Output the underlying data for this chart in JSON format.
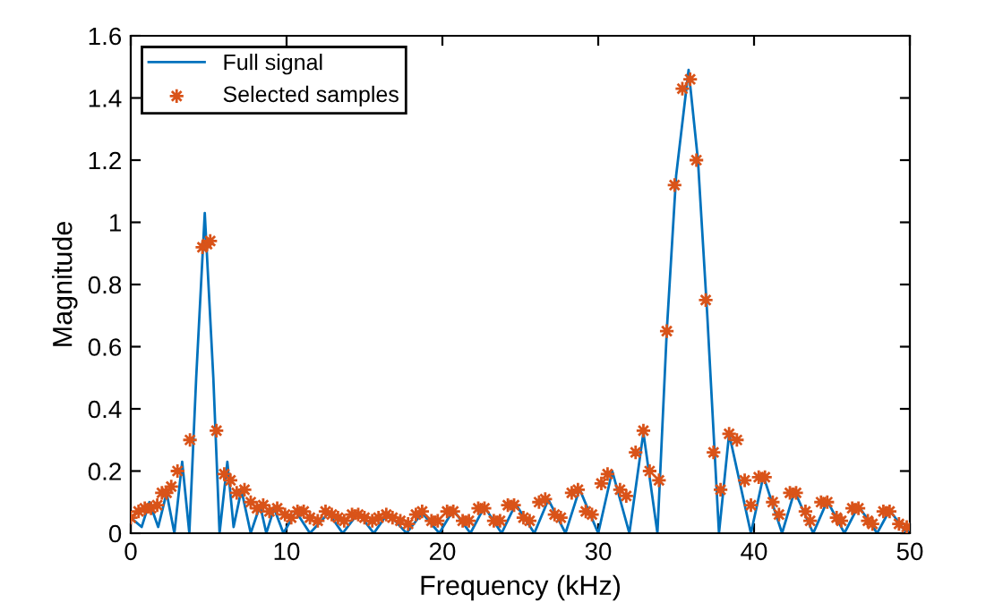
{
  "chart_data": {
    "type": "line",
    "xlabel": "Frequency (kHz)",
    "ylabel": "Magnitude",
    "xlim": [
      0,
      50
    ],
    "xticks": [
      0,
      10,
      20,
      30,
      40,
      50
    ],
    "ylim": [
      0,
      1.6
    ],
    "yticks": [
      0,
      0.2,
      0.4,
      0.6,
      0.8,
      1,
      1.2,
      1.4,
      1.6
    ],
    "grid": false,
    "legend": "top left",
    "series": [
      {
        "name": "Full signal",
        "marker": "none",
        "color": "#0072bd",
        "x": [
          0,
          0.7,
          1.2,
          1.76,
          2.3,
          2.8,
          3.3,
          3.76,
          4.2,
          4.75,
          5.3,
          5.7,
          6.2,
          6.6,
          7.1,
          7.7,
          8.3,
          8.7,
          9.2,
          9.8,
          10.6,
          11.5,
          12.7,
          13.6,
          14.6,
          15.6,
          16.5,
          17.7,
          18.7,
          19.8,
          20.7,
          21.8,
          22.7,
          23.8,
          24.7,
          25.9,
          26.8,
          27.9,
          28.8,
          30.0,
          30.9,
          32.0,
          32.9,
          33.8,
          34.4,
          35.0,
          35.8,
          36.4,
          37.0,
          37.75,
          38.4,
          39.8,
          40.6,
          41.8,
          42.6,
          43.8,
          44.7,
          45.8,
          46.7,
          47.9,
          48.7,
          49.8,
          50
        ],
        "values": [
          0.05,
          0.02,
          0.1,
          0.02,
          0.13,
          0.0,
          0.23,
          0.0,
          0.5,
          1.03,
          0.5,
          0.0,
          0.23,
          0.02,
          0.14,
          0.0,
          0.09,
          0.0,
          0.08,
          0.0,
          0.07,
          0.0,
          0.065,
          0.0,
          0.065,
          0.0,
          0.065,
          0.0,
          0.065,
          0.0,
          0.075,
          0.0,
          0.085,
          0.0,
          0.094,
          0.0,
          0.108,
          0.0,
          0.142,
          0.0,
          0.2,
          0.0,
          0.324,
          0.0,
          0.65,
          1.15,
          1.49,
          1.2,
          0.7,
          0.0,
          0.32,
          0.0,
          0.184,
          0.0,
          0.136,
          0.0,
          0.104,
          0.0,
          0.088,
          0.0,
          0.074,
          0.0,
          0.02
        ]
      },
      {
        "name": "Selected samples",
        "type": "scatter",
        "marker": "cross",
        "color": "#d95319",
        "x": [
          0,
          0.5,
          0.9,
          1.3,
          1.7,
          2.0,
          2.3,
          2.6,
          3.0,
          3.8,
          4.6,
          4.9,
          5.1,
          5.5,
          6.0,
          6.4,
          6.8,
          7.3,
          7.7,
          8.1,
          8.5,
          8.9,
          9.4,
          9.9,
          10.3,
          10.7,
          11.1,
          11.5,
          12.0,
          12.5,
          12.9,
          13.3,
          13.7,
          14.2,
          14.6,
          15.0,
          15.5,
          15.9,
          16.4,
          16.8,
          17.3,
          17.8,
          18.3,
          18.7,
          19.3,
          19.7,
          20.3,
          20.7,
          21.3,
          21.7,
          22.3,
          22.7,
          23.3,
          23.7,
          24.2,
          24.6,
          25.2,
          25.6,
          26.2,
          26.6,
          27.2,
          27.6,
          28.3,
          28.7,
          29.2,
          29.6,
          30.2,
          30.6,
          31.4,
          31.8,
          32.4,
          32.9,
          33.3,
          33.9,
          34.4,
          34.9,
          35.4,
          35.9,
          36.3,
          36.9,
          37.4,
          37.85,
          38.4,
          38.9,
          39.4,
          39.8,
          40.3,
          40.7,
          41.2,
          41.6,
          42.3,
          42.7,
          43.3,
          43.6,
          44.3,
          44.7,
          45.3,
          45.6,
          46.3,
          46.7,
          47.3,
          47.6,
          48.3,
          48.7,
          49.3,
          49.8
        ],
        "values": [
          0.05,
          0.07,
          0.08,
          0.08,
          0.09,
          0.13,
          0.13,
          0.15,
          0.2,
          0.3,
          0.92,
          0.93,
          0.94,
          0.33,
          0.19,
          0.17,
          0.13,
          0.14,
          0.1,
          0.08,
          0.09,
          0.07,
          0.08,
          0.06,
          0.05,
          0.07,
          0.07,
          0.05,
          0.04,
          0.07,
          0.06,
          0.05,
          0.04,
          0.06,
          0.06,
          0.05,
          0.04,
          0.05,
          0.06,
          0.05,
          0.04,
          0.03,
          0.06,
          0.07,
          0.04,
          0.04,
          0.07,
          0.07,
          0.04,
          0.04,
          0.08,
          0.08,
          0.04,
          0.04,
          0.09,
          0.09,
          0.05,
          0.04,
          0.1,
          0.11,
          0.06,
          0.05,
          0.13,
          0.14,
          0.07,
          0.06,
          0.16,
          0.19,
          0.14,
          0.12,
          0.26,
          0.33,
          0.2,
          0.17,
          0.65,
          1.12,
          1.43,
          1.46,
          1.2,
          0.75,
          0.26,
          0.14,
          0.32,
          0.3,
          0.17,
          0.09,
          0.18,
          0.18,
          0.1,
          0.06,
          0.13,
          0.13,
          0.07,
          0.04,
          0.1,
          0.1,
          0.05,
          0.04,
          0.08,
          0.08,
          0.04,
          0.03,
          0.07,
          0.07,
          0.03,
          0.02
        ]
      }
    ]
  }
}
